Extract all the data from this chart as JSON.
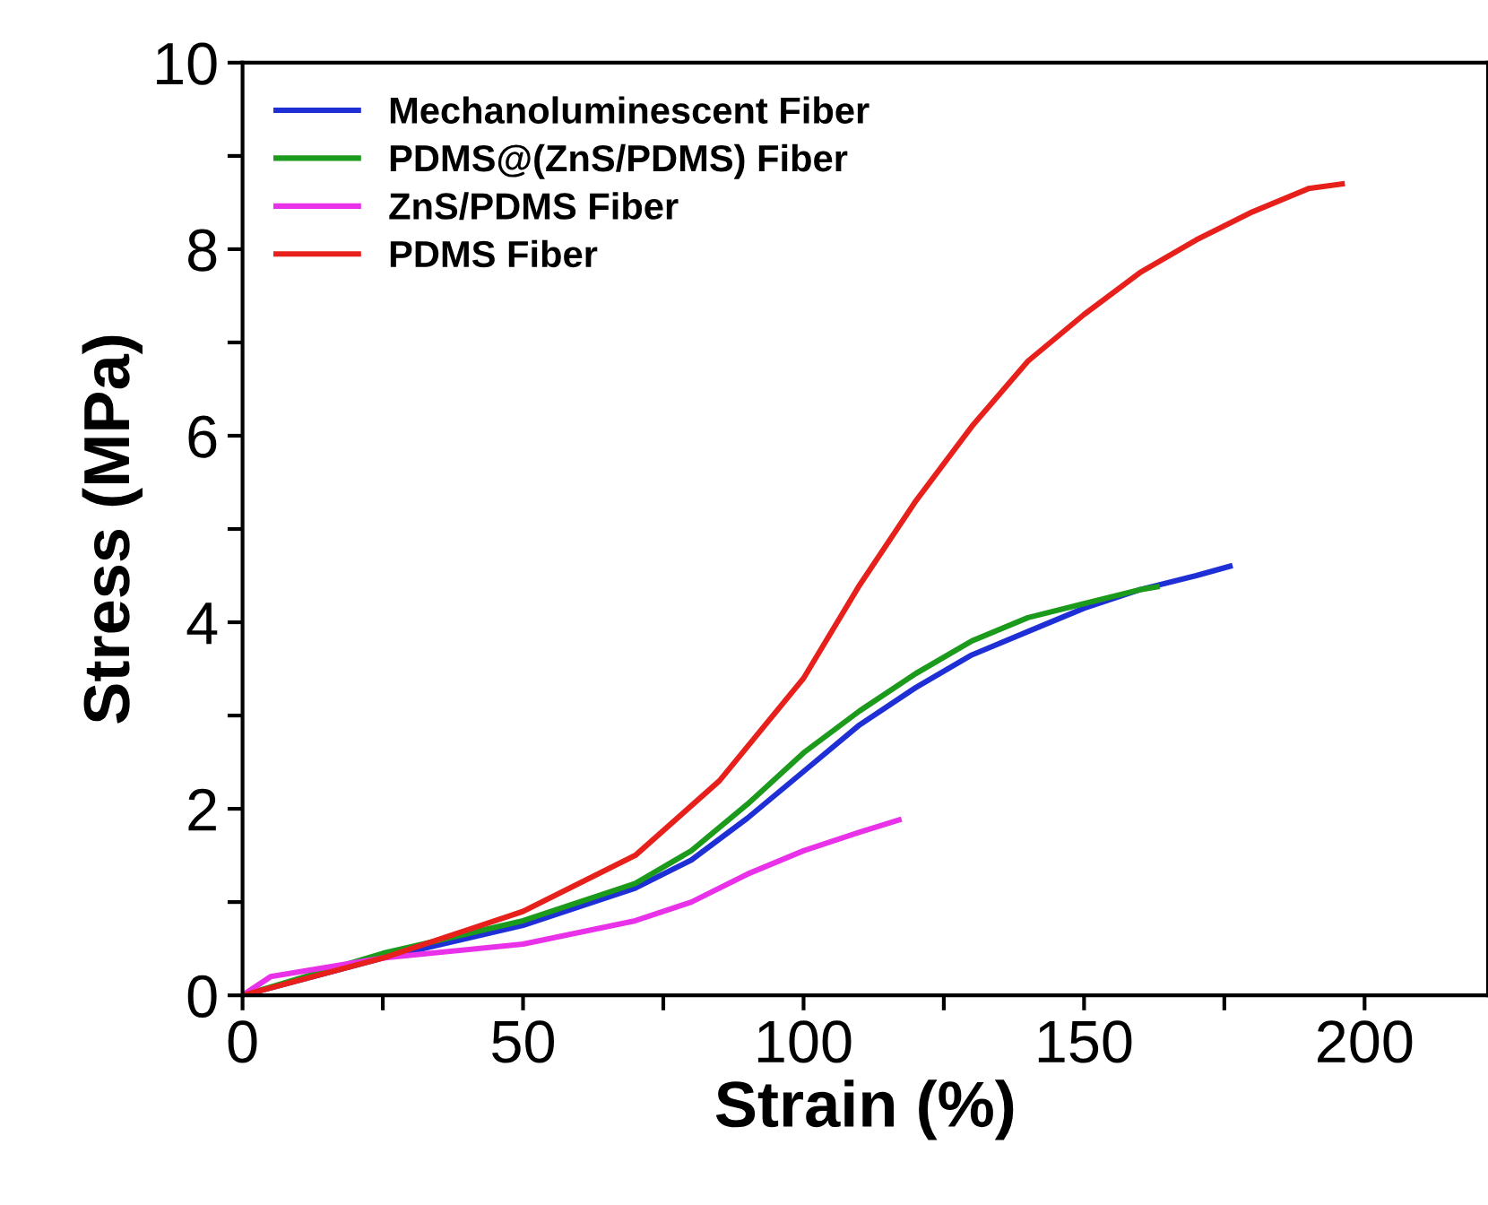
{
  "chart_data": {
    "type": "line",
    "xlabel": "Strain (%)",
    "ylabel": "Stress (MPa)",
    "xlim": [
      0,
      222
    ],
    "ylim": [
      0,
      10
    ],
    "xticks": [
      0,
      {
        "value": 25,
        "label": null
      },
      50,
      {
        "value": 75,
        "label": null
      },
      100,
      {
        "value": 125,
        "label": null
      },
      150,
      {
        "value": 175,
        "label": null
      },
      200
    ],
    "yticks": [
      0,
      {
        "value": 1,
        "label": null
      },
      2,
      {
        "value": 3,
        "label": null
      },
      4,
      {
        "value": 5,
        "label": null
      },
      6,
      {
        "value": 7,
        "label": null
      },
      8,
      {
        "value": 9,
        "label": null
      },
      10
    ],
    "grid": false,
    "legend": "top left",
    "marker": "none",
    "line_style": "solid",
    "series": [
      {
        "name": "Mechanoluminescent Fiber",
        "color": "#1f2fd6",
        "x": [
          0,
          25,
          50,
          70,
          80,
          90,
          100,
          110,
          120,
          130,
          140,
          150,
          160,
          170,
          176
        ],
        "values": [
          0,
          0.4,
          0.75,
          1.15,
          1.45,
          1.9,
          2.4,
          2.9,
          3.3,
          3.65,
          3.9,
          4.15,
          4.35,
          4.5,
          4.6
        ]
      },
      {
        "name": "PDMS@(ZnS/PDMS) Fiber",
        "color": "#1c9a1c",
        "x": [
          0,
          25,
          50,
          70,
          80,
          90,
          100,
          110,
          120,
          130,
          140,
          150,
          160,
          163
        ],
        "values": [
          0,
          0.45,
          0.8,
          1.2,
          1.55,
          2.05,
          2.6,
          3.05,
          3.45,
          3.8,
          4.05,
          4.2,
          4.35,
          4.38
        ]
      },
      {
        "name": "ZnS/PDMS Fiber",
        "color": "#e831e8",
        "x": [
          0,
          5,
          25,
          50,
          70,
          80,
          90,
          100,
          110,
          117
        ],
        "values": [
          0,
          0.2,
          0.4,
          0.55,
          0.8,
          1.0,
          1.3,
          1.55,
          1.75,
          1.88
        ]
      },
      {
        "name": "PDMS Fiber",
        "color": "#e8201c",
        "x": [
          0,
          25,
          50,
          70,
          85,
          100,
          110,
          120,
          130,
          140,
          150,
          160,
          170,
          180,
          190,
          196
        ],
        "values": [
          0,
          0.4,
          0.9,
          1.5,
          2.3,
          3.4,
          4.4,
          5.3,
          6.1,
          6.8,
          7.3,
          7.75,
          8.1,
          8.4,
          8.65,
          8.7
        ]
      }
    ]
  }
}
